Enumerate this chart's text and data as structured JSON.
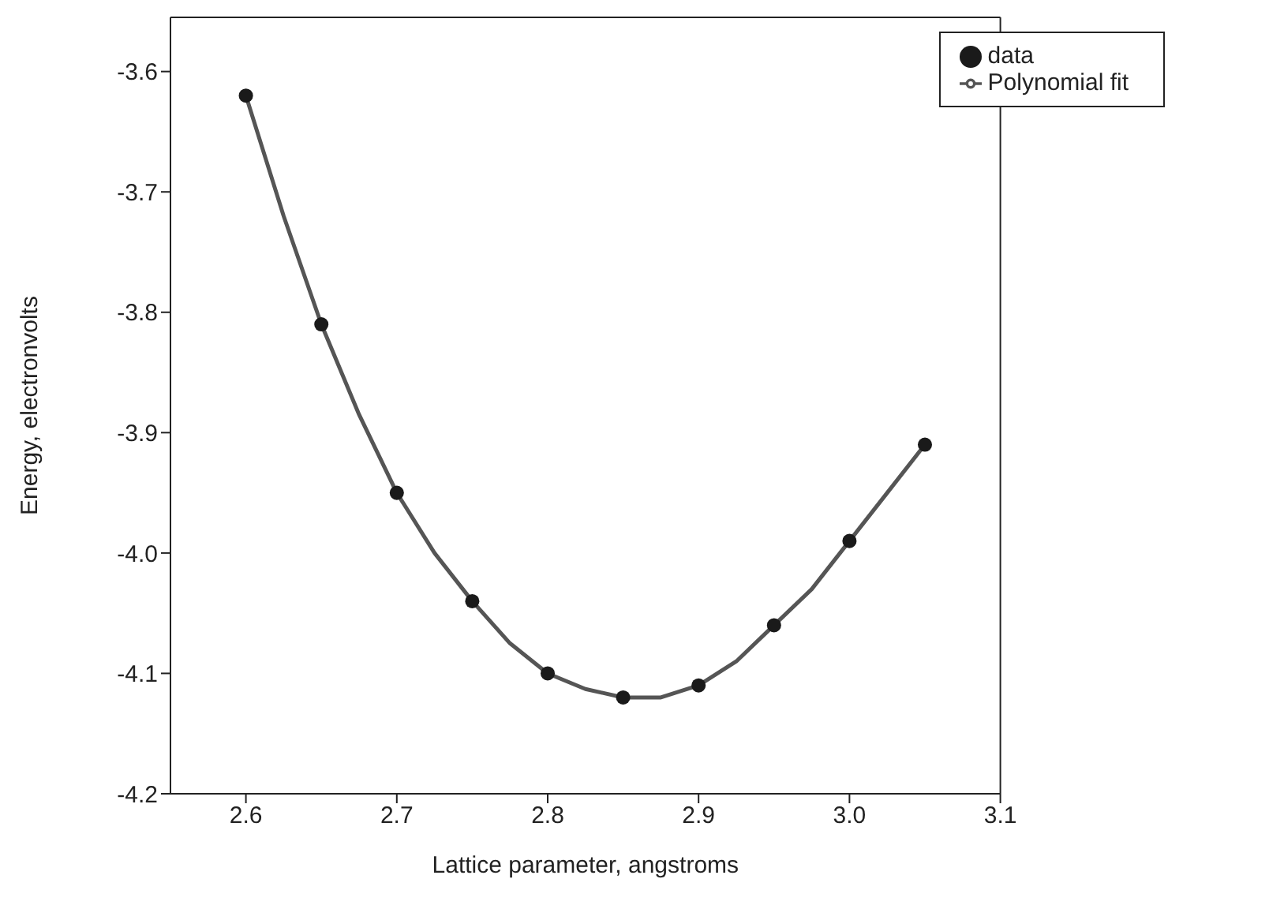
{
  "chart_data": {
    "type": "scatter",
    "xlabel": "Lattice parameter, angstroms",
    "ylabel": "Energy, electronvolts",
    "xlim": [
      2.55,
      3.1
    ],
    "xticks": [
      2.6,
      2.7,
      2.8,
      2.9,
      {
        "value": 3,
        "label": "3.0"
      },
      3.1
    ],
    "ylim": [
      -4.2,
      -3.555
    ],
    "yticks": [
      -4.2,
      -4.1,
      {
        "value": -4,
        "label": "-4.0"
      },
      -3.9,
      -3.8,
      -3.7,
      -3.6
    ],
    "grid": false,
    "legend": "top right",
    "series": [
      {
        "name": "data",
        "marker": "circle",
        "color": "#1a1a1a",
        "x": [
          2.6,
          2.65,
          2.7,
          2.75,
          2.8,
          2.85,
          2.9,
          2.95,
          3.0,
          3.05
        ],
        "values": [
          -3.62,
          -3.81,
          -3.95,
          -4.04,
          -4.1,
          -4.12,
          -4.11,
          -4.06,
          -3.99,
          -3.91
        ]
      },
      {
        "name": "Polynomial fit",
        "type": "line",
        "marker": "none",
        "line_style": "solid",
        "color": "#555555",
        "x": [
          2.6,
          2.625,
          2.65,
          2.675,
          2.7,
          2.725,
          2.75,
          2.775,
          2.8,
          2.825,
          2.85,
          2.875,
          2.9,
          2.925,
          2.95,
          2.975,
          3.0,
          3.025,
          3.05
        ],
        "values": [
          -3.62,
          -3.72,
          -3.81,
          -3.885,
          -3.95,
          -4.0,
          -4.04,
          -4.075,
          -4.1,
          -4.113,
          -4.12,
          -4.12,
          -4.11,
          -4.09,
          -4.06,
          -4.03,
          -3.99,
          -3.95,
          -3.91
        ]
      }
    ]
  }
}
